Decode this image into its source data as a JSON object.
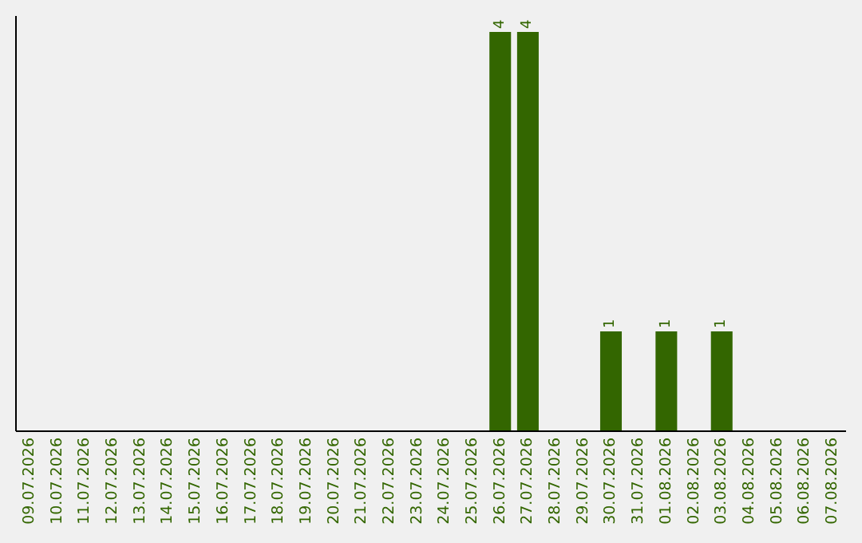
{
  "chart_data": {
    "type": "bar",
    "color": "#336600",
    "categories": [
      "09.07.2026",
      "10.07.2026",
      "11.07.2026",
      "12.07.2026",
      "13.07.2026",
      "14.07.2026",
      "15.07.2026",
      "16.07.2026",
      "17.07.2026",
      "18.07.2026",
      "19.07.2026",
      "20.07.2026",
      "21.07.2026",
      "22.07.2026",
      "23.07.2026",
      "24.07.2026",
      "25.07.2026",
      "26.07.2026",
      "27.07.2026",
      "28.07.2026",
      "29.07.2026",
      "30.07.2026",
      "31.07.2026",
      "01.08.2026",
      "02.08.2026",
      "03.08.2026",
      "04.08.2026",
      "05.08.2026",
      "06.08.2026",
      "07.08.2026"
    ],
    "values": [
      null,
      null,
      null,
      null,
      null,
      null,
      null,
      null,
      null,
      null,
      null,
      null,
      null,
      null,
      null,
      null,
      null,
      4,
      4,
      null,
      null,
      1,
      null,
      1,
      null,
      1,
      null,
      null,
      null,
      null
    ],
    "value_labels": [
      null,
      null,
      null,
      null,
      null,
      null,
      null,
      null,
      null,
      null,
      null,
      null,
      null,
      null,
      null,
      null,
      null,
      "4",
      "4",
      null,
      null,
      "1",
      null,
      "1",
      null,
      "1",
      null,
      null,
      null,
      null
    ]
  }
}
